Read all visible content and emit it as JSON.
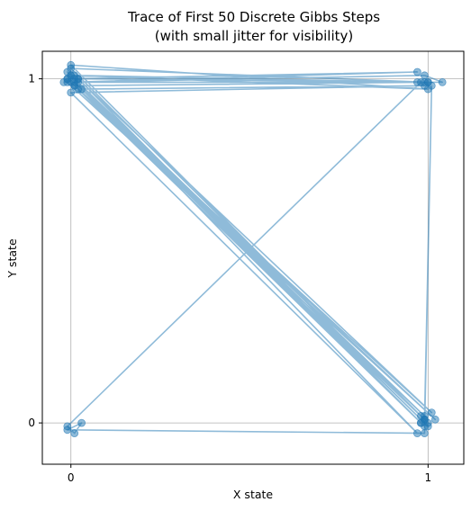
{
  "chart_data": {
    "type": "scatter",
    "title_line1": "Trace of First 50 Discrete Gibbs Steps",
    "title_line2": "(with small jitter for visibility)",
    "xlabel": "X state",
    "ylabel": "Y state",
    "xlim": [
      -0.08,
      1.1
    ],
    "ylim": [
      -0.12,
      1.08
    ],
    "x_ticks": [
      {
        "value": 0,
        "label": "0"
      },
      {
        "value": 1,
        "label": "1"
      }
    ],
    "y_ticks": [
      {
        "value": 0,
        "label": "0"
      },
      {
        "value": 1,
        "label": "1"
      }
    ],
    "grid": true,
    "color": "#1f77b4",
    "series": [
      {
        "x": [
          0.01,
          0.97,
          0.0,
          0.99,
          0.02,
          1.0,
          -0.01,
          0.98,
          0.0,
          0.99,
          0.01,
          0.98,
          0.02,
          1.01,
          -0.01,
          0.99,
          0.0,
          1.0,
          0.02,
          0.98,
          0.01,
          1.0,
          0.0,
          0.99,
          -0.01,
          1.02,
          0.03,
          0.99,
          0.0,
          0.97,
          -0.01,
          0.99,
          0.01,
          0.98,
          -0.01,
          0.01,
          0.03,
          -0.01,
          0.99,
          1.01,
          0.99,
          0.0,
          1.0,
          0.01,
          0.97,
          0.02,
          0.99,
          1.04,
          1.0,
          -0.02
        ],
        "y": [
          1.0,
          1.02,
          0.99,
          0.01,
          0.97,
          0.0,
          1.0,
          0.02,
          1.01,
          -0.01,
          0.98,
          0.0,
          1.0,
          0.03,
          1.0,
          0.01,
          1.03,
          0.99,
          1.0,
          0.0,
          0.99,
          -0.01,
          1.01,
          0.99,
          0.99,
          0.01,
          0.97,
          0.98,
          0.96,
          -0.03,
          1.02,
          0.02,
          0.98,
          0.99,
          -0.01,
          -0.03,
          0.0,
          -0.02,
          -0.03,
          0.98,
          0.01,
          1.04,
          0.97,
          1.01,
          0.99,
          0.99,
          1.01,
          0.99,
          0.99,
          0.99
        ]
      }
    ]
  }
}
